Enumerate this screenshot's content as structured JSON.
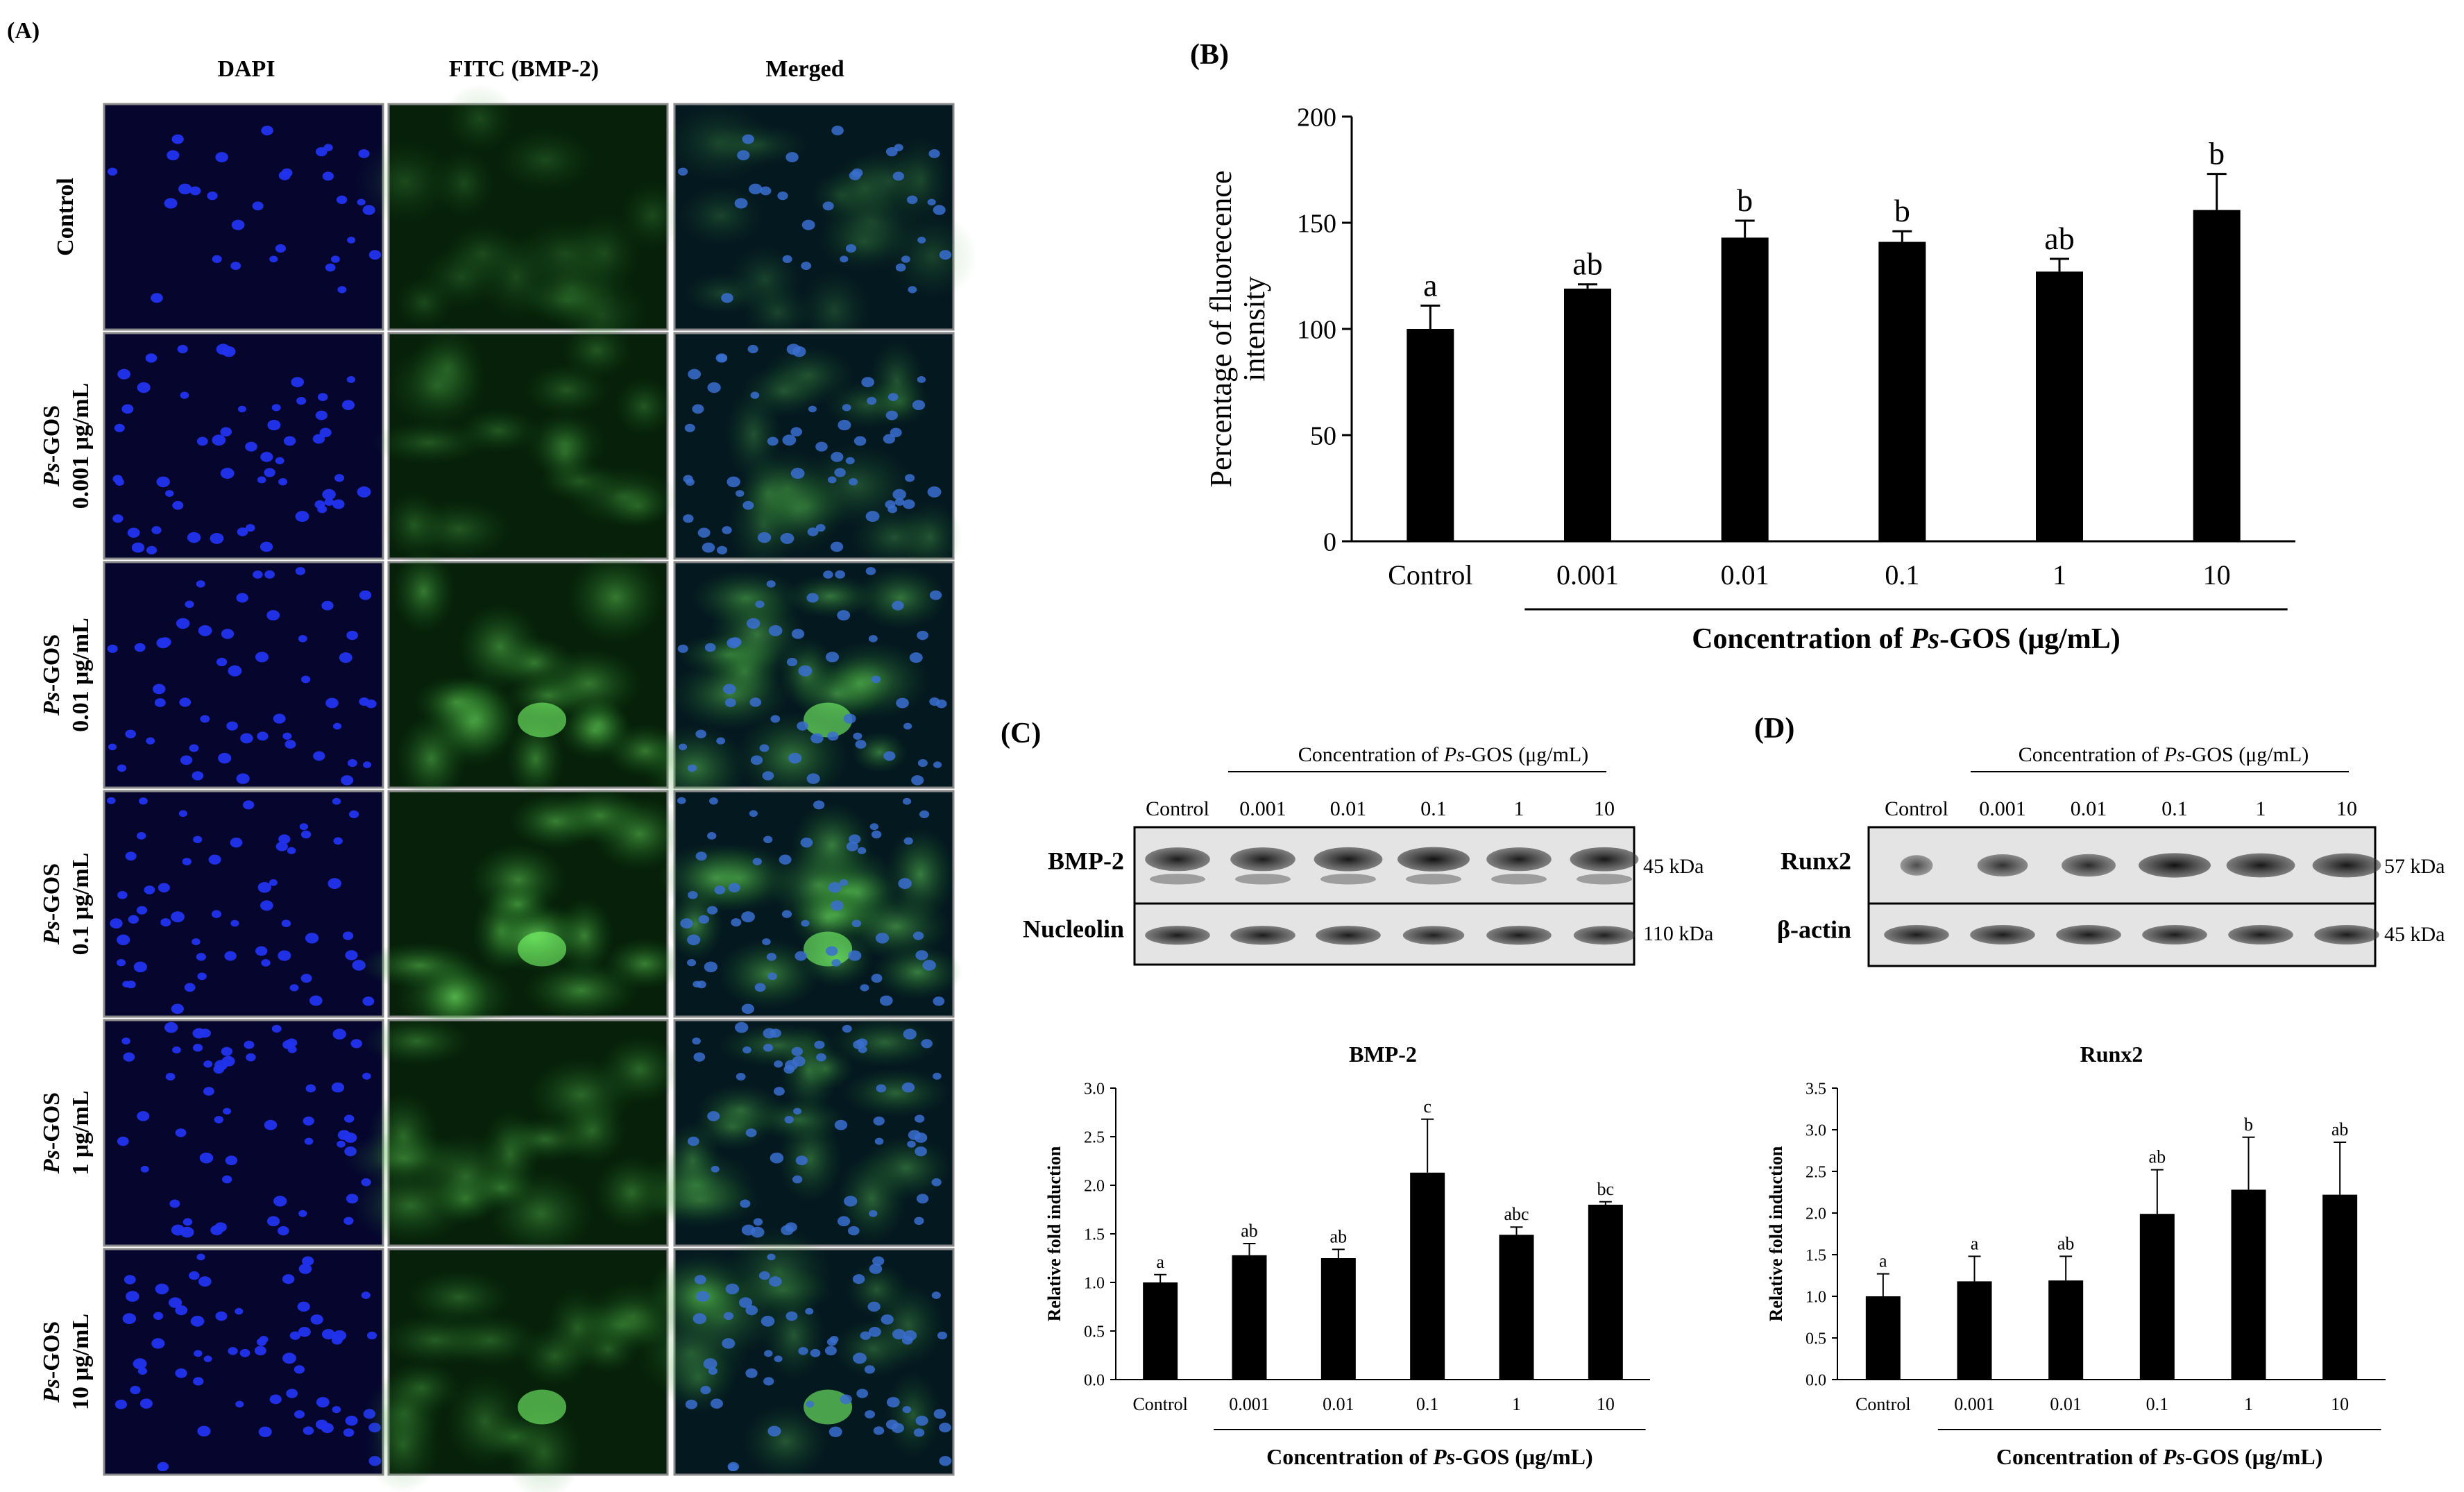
{
  "panelA": {
    "label": "(A)",
    "columns": [
      "DAPI",
      "FITC (BMP-2)",
      "Merged"
    ],
    "rows": [
      {
        "lines": [
          "Control"
        ]
      },
      {
        "italic": "Ps",
        "lines": [
          "-GOS",
          "0.001 μg/mL"
        ]
      },
      {
        "italic": "Ps",
        "lines": [
          "-GOS",
          "0.01 μg/mL"
        ]
      },
      {
        "italic": "Ps",
        "lines": [
          "-GOS",
          "0.1 μg/mL"
        ]
      },
      {
        "italic": "Ps",
        "lines": [
          "-GOS",
          "1 μg/mL"
        ]
      },
      {
        "italic": "Ps",
        "lines": [
          "-GOS",
          "10 μg/mL"
        ]
      }
    ],
    "colors": {
      "dapi": "#0a0a6e",
      "fitc": "#0f4a12",
      "merged": "#0b2f3e",
      "dapiCell": "#2b3cff",
      "fitcCell": "#3fbf3a"
    }
  },
  "chart_data": [
    {
      "panel": "(B)",
      "type": "bar",
      "categories": [
        "Control",
        "0.001",
        "0.01",
        "0.1",
        "1",
        "10"
      ],
      "values": [
        100,
        119,
        143,
        141,
        127,
        156
      ],
      "errors": [
        11,
        2,
        8,
        5,
        6,
        17
      ],
      "letters": [
        "a",
        "ab",
        "b",
        "b",
        "ab",
        "b"
      ],
      "ylabel": "Percentage of fluorecence intensity",
      "xlabel_prefix": "Concentration of ",
      "xlabel_italic": "Ps",
      "xlabel_suffix": "-GOS (μg/mL)",
      "ylim": [
        0,
        200
      ],
      "yticks": [
        0,
        50,
        100,
        150,
        200
      ]
    },
    {
      "panel": "(C)",
      "type": "bar",
      "title": "BMP-2",
      "categories": [
        "Control",
        "0.001",
        "0.01",
        "0.1",
        "1",
        "10"
      ],
      "values": [
        1.0,
        1.28,
        1.25,
        2.13,
        1.49,
        1.8
      ],
      "errors": [
        0.08,
        0.12,
        0.09,
        0.55,
        0.08,
        0.03
      ],
      "letters": [
        "a",
        "ab",
        "ab",
        "c",
        "abc",
        "bc"
      ],
      "ylabel": "Relative fold induction",
      "xlabel_prefix": "Concentration of ",
      "xlabel_italic": "Ps",
      "xlabel_suffix": "-GOS (μg/mL)",
      "ylim": [
        0,
        3.0
      ],
      "yticks": [
        "0.0",
        "0.5",
        "1.0",
        "1.5",
        "2.0",
        "2.5",
        "3.0"
      ]
    },
    {
      "panel": "(D)",
      "type": "bar",
      "title": "Runx2",
      "categories": [
        "Control",
        "0.001",
        "0.01",
        "0.1",
        "1",
        "10"
      ],
      "values": [
        1.0,
        1.18,
        1.19,
        1.99,
        2.28,
        2.22
      ],
      "errors": [
        0.27,
        0.3,
        0.29,
        0.53,
        0.63,
        0.63
      ],
      "letters": [
        "a",
        "a",
        "ab",
        "ab",
        "b",
        "ab"
      ],
      "ylabel": "Relative fold induction",
      "xlabel_prefix": "Concentration of ",
      "xlabel_italic": "Ps",
      "xlabel_suffix": "-GOS (μg/mL)",
      "ylim": [
        0,
        3.5
      ],
      "yticks": [
        "0.0",
        "0.5",
        "1.0",
        "1.5",
        "2.0",
        "2.5",
        "3.0",
        "3.5"
      ]
    }
  ],
  "blotC": {
    "label": "(C)",
    "header_prefix": "Concentration of ",
    "header_italic": "Ps",
    "header_suffix": "-GOS (μg/mL)",
    "lanes": [
      "Control",
      "0.001",
      "0.01",
      "0.1",
      "1",
      "10"
    ],
    "rows": [
      {
        "name": "BMP-2",
        "kda": "45 kDa"
      },
      {
        "name": "Nucleolin",
        "kda": "110 kDa"
      }
    ]
  },
  "blotD": {
    "label": "(D)",
    "header_prefix": "Concentration of ",
    "header_italic": "Ps",
    "header_suffix": "-GOS (μg/mL)",
    "lanes": [
      "Control",
      "0.001",
      "0.01",
      "0.1",
      "1",
      "10"
    ],
    "rows": [
      {
        "name": "Runx2",
        "kda": "57 kDa"
      },
      {
        "name": "β-actin",
        "kda": "45 kDa"
      }
    ]
  }
}
